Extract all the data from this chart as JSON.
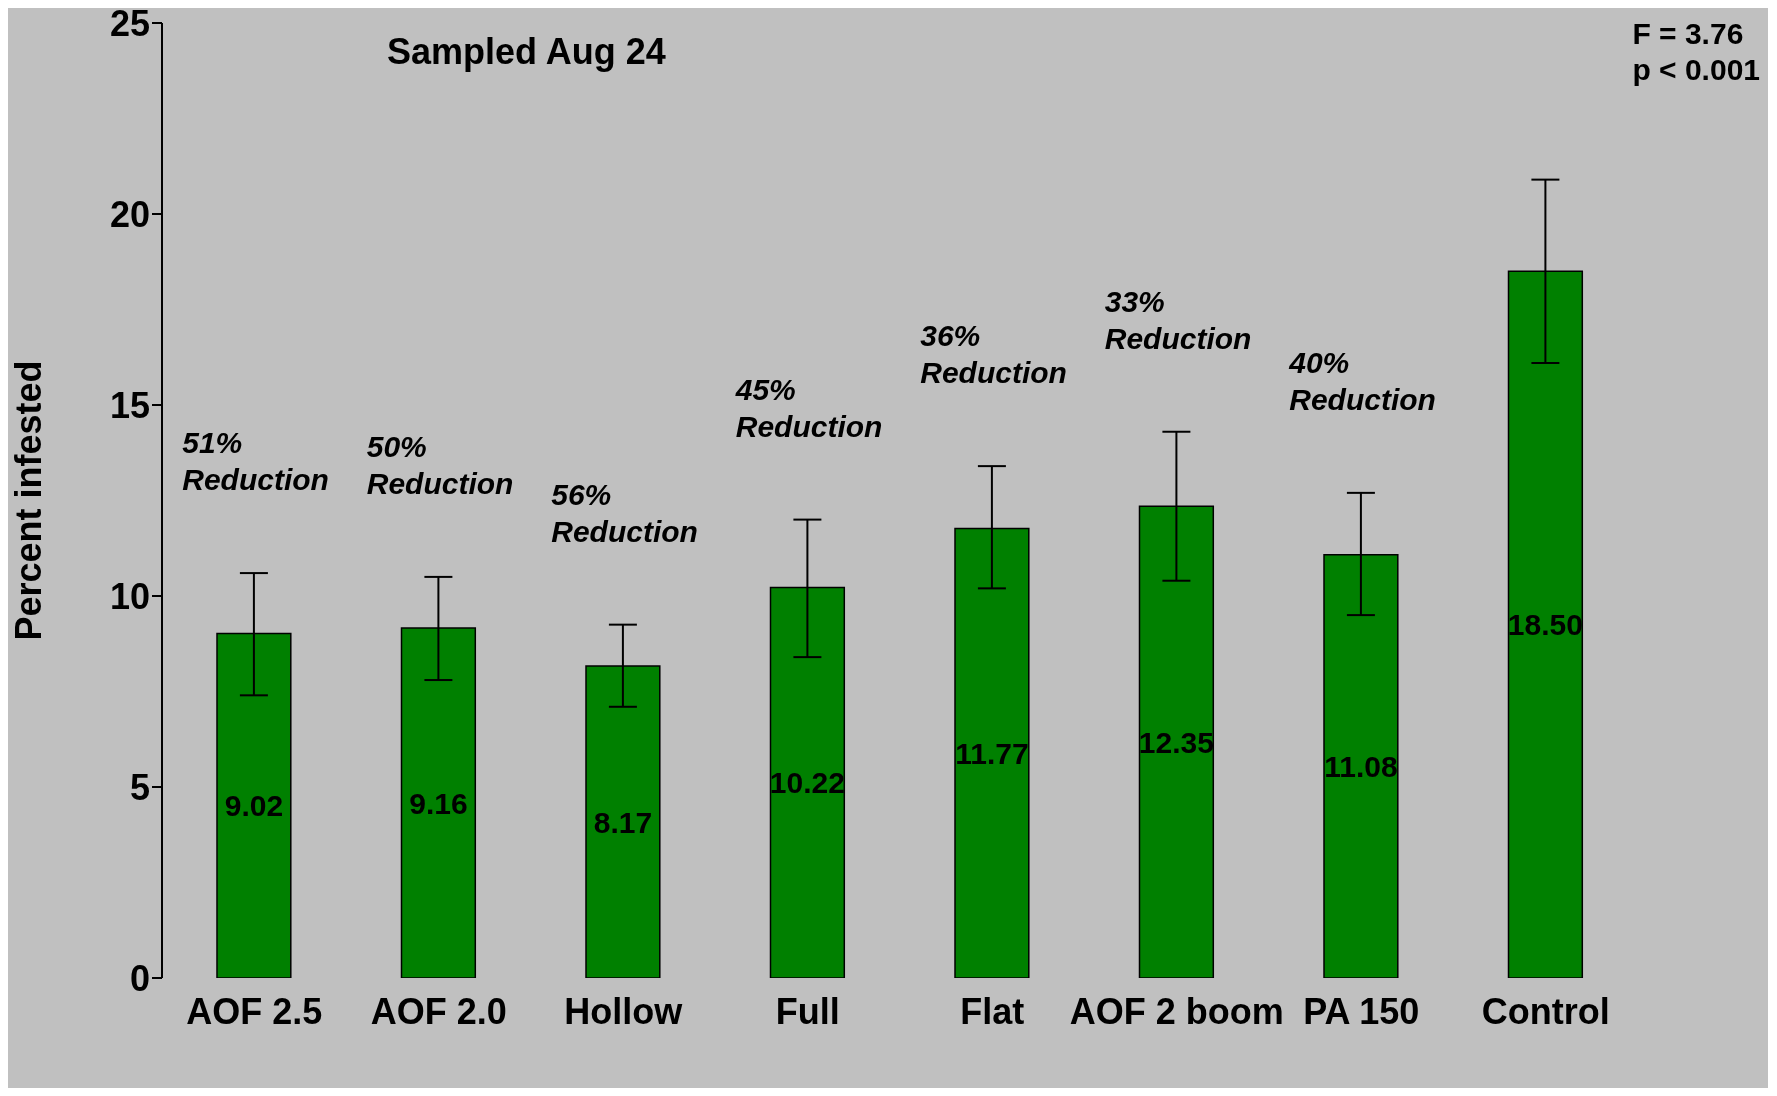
{
  "chart_data": {
    "type": "bar",
    "title": "Sampled Aug 24",
    "ylabel": "Percent  infested",
    "categories": [
      "AOF 2.5",
      "AOF 2.0",
      "Hollow",
      "Full",
      "Flat",
      "AOF 2 boom",
      "PA 150",
      "Control"
    ],
    "values": [
      9.02,
      9.16,
      8.17,
      10.22,
      11.77,
      12.35,
      11.08,
      18.5
    ],
    "value_labels": [
      "9.02",
      "9.16",
      "8.17",
      "10.22",
      "11.77",
      "12.35",
      "11.08",
      "18.50"
    ],
    "errors": [
      [
        7.4,
        10.6
      ],
      [
        7.8,
        10.5
      ],
      [
        7.1,
        9.25
      ],
      [
        8.4,
        12.0
      ],
      [
        10.2,
        13.4
      ],
      [
        10.4,
        14.3
      ],
      [
        9.5,
        12.7
      ],
      [
        16.1,
        20.9
      ]
    ],
    "color": "#008000",
    "ylim": [
      0,
      25
    ],
    "yticks": [
      0,
      5,
      10,
      15,
      20,
      25
    ],
    "grid": false,
    "legend": false,
    "annotations": [
      "F = 3.76",
      "p < 0.001",
      "51% Reduction",
      "50% Reduction",
      "56% Reduction",
      "45% Reduction",
      "36% Reduction",
      "33% Reduction",
      "40% Reduction"
    ]
  }
}
